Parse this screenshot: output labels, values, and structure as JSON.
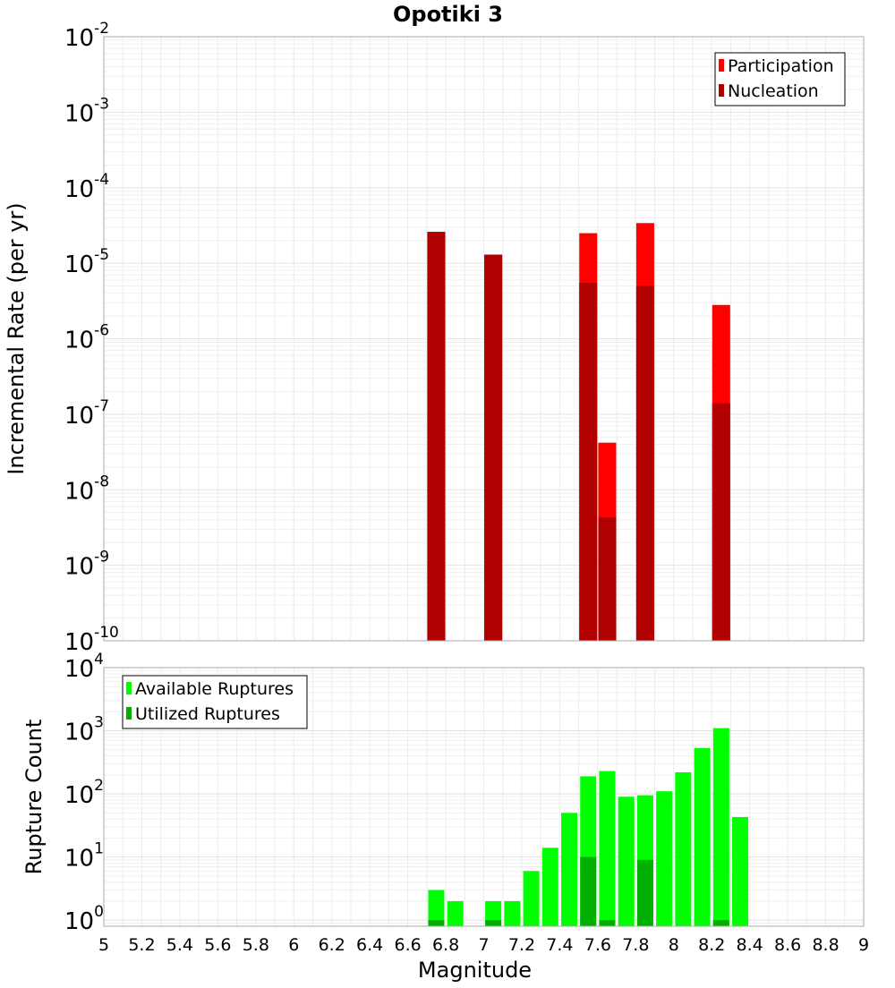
{
  "chart_data": [
    {
      "type": "bar",
      "title": "Opotiki 3",
      "ylabel": "Incremental Rate (per yr)",
      "xlabel": "",
      "xlim": [
        5,
        9
      ],
      "ylim": [
        1e-10,
        0.01
      ],
      "yscale": "log",
      "grid": true,
      "legend_position": "top-right",
      "series": [
        {
          "name": "Participation",
          "color": "#ff0000",
          "x": [
            6.75,
            7.05,
            7.55,
            7.65,
            7.85,
            8.25
          ],
          "values": [
            2.6e-05,
            1.3e-05,
            2.5e-05,
            4.2e-08,
            3.4e-05,
            2.8e-06
          ]
        },
        {
          "name": "Nucleation",
          "color": "#b00000",
          "x": [
            6.75,
            7.05,
            7.55,
            7.65,
            7.85,
            8.25
          ],
          "values": [
            2.6e-05,
            1.3e-05,
            5.5e-06,
            4.3e-09,
            5e-06,
            1.4e-07
          ]
        }
      ],
      "y_tick_labels": [
        {
          "base": "10",
          "exp": "-10",
          "value": 1e-10
        },
        {
          "base": "10",
          "exp": "-9",
          "value": 1e-09
        },
        {
          "base": "10",
          "exp": "-8",
          "value": 1e-08
        },
        {
          "base": "10",
          "exp": "-7",
          "value": 1e-07
        },
        {
          "base": "10",
          "exp": "-6",
          "value": 1e-06
        },
        {
          "base": "10",
          "exp": "-5",
          "value": 1e-05
        },
        {
          "base": "10",
          "exp": "-4",
          "value": 0.0001
        },
        {
          "base": "10",
          "exp": "-3",
          "value": 0.001
        },
        {
          "base": "10",
          "exp": "-2",
          "value": 0.01
        }
      ]
    },
    {
      "type": "bar",
      "title": "",
      "ylabel": "Rupture Count",
      "xlabel": "Magnitude",
      "xlim": [
        5,
        9
      ],
      "ylim": [
        0.8,
        10000
      ],
      "yscale": "log",
      "grid": true,
      "legend_position": "top-left",
      "series": [
        {
          "name": "Available Ruptures",
          "color": "#00ff00",
          "x": [
            6.75,
            6.85,
            7.05,
            7.15,
            7.25,
            7.35,
            7.45,
            7.55,
            7.65,
            7.75,
            7.85,
            7.95,
            8.05,
            8.15,
            8.25,
            8.35
          ],
          "values": [
            3,
            2,
            2,
            2,
            6,
            14,
            50,
            190,
            230,
            90,
            95,
            110,
            220,
            530,
            1100,
            43
          ]
        },
        {
          "name": "Utilized Ruptures",
          "color": "#00b000",
          "x": [
            6.75,
            7.05,
            7.55,
            7.65,
            7.85,
            8.25
          ],
          "values": [
            1,
            1,
            10,
            1,
            9,
            1
          ]
        }
      ],
      "y_tick_labels": [
        {
          "base": "10",
          "exp": "0",
          "value": 1
        },
        {
          "base": "10",
          "exp": "1",
          "value": 10
        },
        {
          "base": "10",
          "exp": "2",
          "value": 100
        },
        {
          "base": "10",
          "exp": "3",
          "value": 1000
        },
        {
          "base": "10",
          "exp": "4",
          "value": 10000
        }
      ],
      "x_tick_labels": [
        "5",
        "5.2",
        "5.4",
        "5.6",
        "5.8",
        "6",
        "6.2",
        "6.4",
        "6.6",
        "6.8",
        "7",
        "7.2",
        "7.4",
        "7.6",
        "7.8",
        "8",
        "8.2",
        "8.4",
        "8.6",
        "8.8",
        "9"
      ]
    }
  ]
}
